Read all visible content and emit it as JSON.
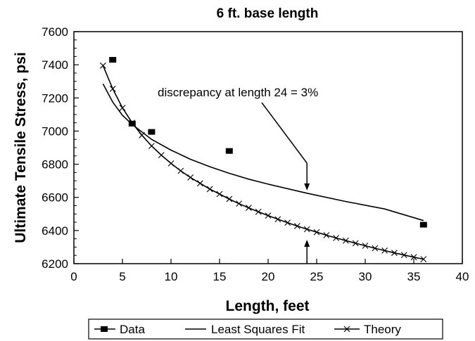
{
  "chart_data": {
    "type": "line",
    "title": "6 ft. base length",
    "xlabel": "Length, feet",
    "ylabel": "Ultimate Tensile Stress, psi",
    "xlim": [
      0,
      40
    ],
    "ylim": [
      6200,
      7600
    ],
    "xticks": [
      0,
      5,
      10,
      15,
      20,
      25,
      30,
      35,
      40
    ],
    "yticks": [
      6200,
      6400,
      6600,
      6800,
      7000,
      7200,
      7400,
      7600
    ],
    "grid": false,
    "legend_position": "bottom",
    "annotation": {
      "text": "discrepancy at length 24 = 3%",
      "x": 24
    },
    "series": [
      {
        "name": "Data",
        "style": "markers",
        "marker": "square",
        "x": [
          4,
          6,
          8,
          16,
          36
        ],
        "y": [
          7430,
          7045,
          6995,
          6880,
          6435
        ]
      },
      {
        "name": "Least Squares Fit",
        "style": "line",
        "x": [
          3,
          4,
          5,
          6,
          8,
          10,
          12,
          14,
          16,
          18,
          20,
          24,
          28,
          32,
          36
        ],
        "y": [
          7285,
          7175,
          7095,
          7040,
          6950,
          6885,
          6830,
          6785,
          6745,
          6710,
          6680,
          6625,
          6575,
          6530,
          6460
        ]
      },
      {
        "name": "Theory",
        "style": "line-x",
        "x": [
          3,
          4,
          5,
          6,
          7,
          8,
          9,
          10,
          11,
          12,
          13,
          14,
          15,
          16,
          17,
          18,
          19,
          20,
          21,
          22,
          23,
          24,
          25,
          26,
          27,
          28,
          29,
          30,
          31,
          32,
          33,
          34,
          35,
          36
        ],
        "y": [
          7395,
          7255,
          7140,
          7050,
          6975,
          6910,
          6855,
          6805,
          6760,
          6720,
          6685,
          6650,
          6620,
          6590,
          6562,
          6537,
          6513,
          6490,
          6468,
          6447,
          6427,
          6408,
          6390,
          6372,
          6355,
          6339,
          6323,
          6308,
          6293,
          6279,
          6265,
          6252,
          6239,
          6227
        ]
      }
    ]
  }
}
